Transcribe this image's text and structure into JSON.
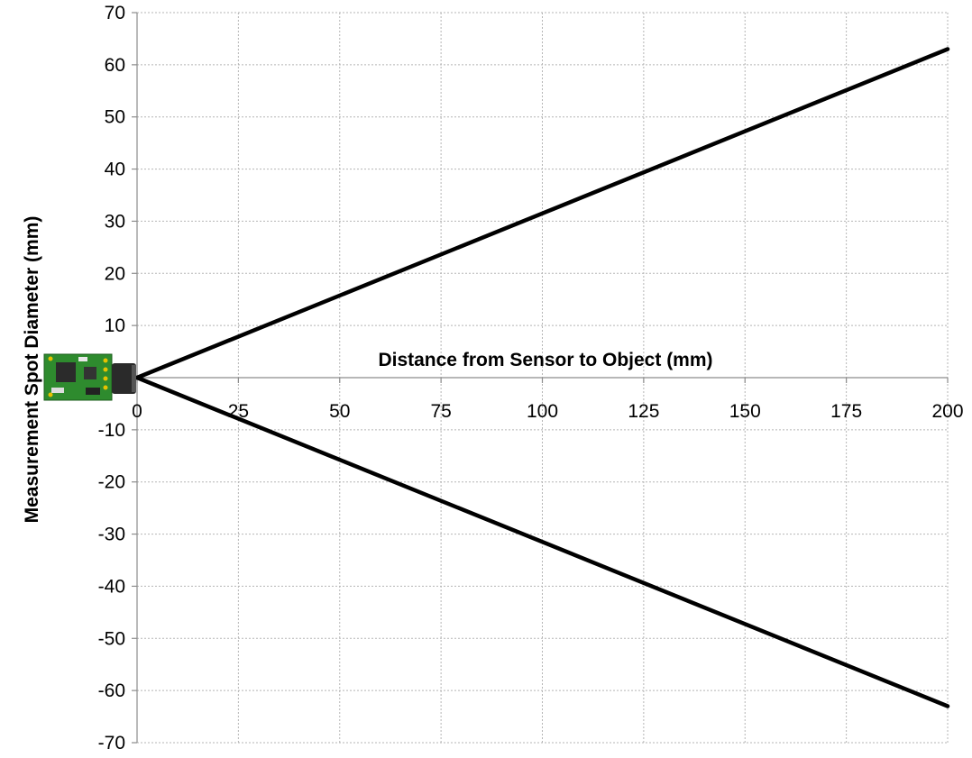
{
  "chart_data": {
    "type": "line",
    "title": "",
    "xlabel": "Distance from Sensor to Object (mm)",
    "ylabel": "Measurement Spot Diameter (mm)",
    "xlim": [
      0,
      200
    ],
    "ylim": [
      -70,
      70
    ],
    "x_ticks": [
      0,
      25,
      50,
      75,
      100,
      125,
      150,
      175,
      200
    ],
    "y_ticks": [
      70,
      60,
      50,
      40,
      30,
      20,
      10,
      0,
      -10,
      -20,
      -30,
      -40,
      -50,
      -60,
      -70
    ],
    "y_tick_labels_shown": [
      "70",
      "60",
      "50",
      "40",
      "30",
      "20",
      "10",
      "-10",
      "-20",
      "-30",
      "-40",
      "-50",
      "-60",
      "-70"
    ],
    "grid": true,
    "series": [
      {
        "x": [
          0,
          200
        ],
        "y": [
          0,
          63
        ]
      },
      {
        "x": [
          0,
          200
        ],
        "y": [
          0,
          -63
        ]
      }
    ],
    "colors": {
      "line": "#000000",
      "grid": "#b5b5b5",
      "board": "#2e8b2e"
    },
    "sensor_icon": "sensor-board-icon"
  }
}
